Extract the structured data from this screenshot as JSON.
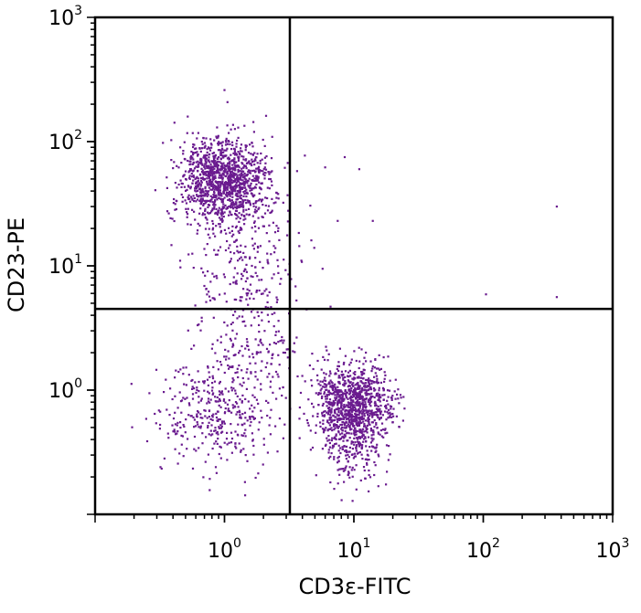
{
  "chart_data": {
    "type": "scatter",
    "title": "",
    "xlabel": "CD3ε-FITC",
    "ylabel": "CD23-PE",
    "x_scale": "log",
    "y_scale": "log",
    "xlim": [
      0.1,
      1000
    ],
    "ylim": [
      0.1,
      1000
    ],
    "x_ticks": [
      {
        "value": 1,
        "base": "10",
        "exp": "0"
      },
      {
        "value": 10,
        "base": "10",
        "exp": "1"
      },
      {
        "value": 100,
        "base": "10",
        "exp": "2"
      },
      {
        "value": 1000,
        "base": "10",
        "exp": "3"
      }
    ],
    "y_ticks": [
      {
        "value": 1,
        "base": "10",
        "exp": "0"
      },
      {
        "value": 10,
        "base": "10",
        "exp": "1"
      },
      {
        "value": 100,
        "base": "10",
        "exp": "2"
      },
      {
        "value": 1000,
        "base": "10",
        "exp": "3"
      }
    ],
    "gates": {
      "x": 3.2,
      "y": 4.5
    },
    "point_color": "#6a1b8f",
    "populations": [
      {
        "center_x": 1.0,
        "center_y": 48,
        "spread_x": 0.17,
        "spread_y": 0.17,
        "count": 1250
      },
      {
        "center_x": 1.4,
        "center_y": 10,
        "spread_x": 0.2,
        "spread_y": 0.32,
        "count": 260
      },
      {
        "center_x": 10,
        "center_y": 0.78,
        "spread_x": 0.15,
        "spread_y": 0.16,
        "count": 1000
      },
      {
        "center_x": 10,
        "center_y": 0.35,
        "spread_x": 0.12,
        "spread_y": 0.18,
        "count": 200
      },
      {
        "center_x": 0.9,
        "center_y": 0.65,
        "spread_x": 0.22,
        "spread_y": 0.22,
        "count": 360
      },
      {
        "center_x": 1.6,
        "center_y": 2.0,
        "spread_x": 0.22,
        "spread_y": 0.2,
        "count": 150
      }
    ],
    "outliers": [
      {
        "x": 370,
        "y": 30
      },
      {
        "x": 370,
        "y": 5.6
      },
      {
        "x": 105,
        "y": 5.9
      },
      {
        "x": 8.5,
        "y": 75
      },
      {
        "x": 11,
        "y": 60
      },
      {
        "x": 6,
        "y": 62
      },
      {
        "x": 14,
        "y": 23
      },
      {
        "x": 7.5,
        "y": 23
      },
      {
        "x": 18,
        "y": 0.22
      },
      {
        "x": 1.0,
        "y": 260
      },
      {
        "x": 0.32,
        "y": 0.24
      }
    ]
  }
}
